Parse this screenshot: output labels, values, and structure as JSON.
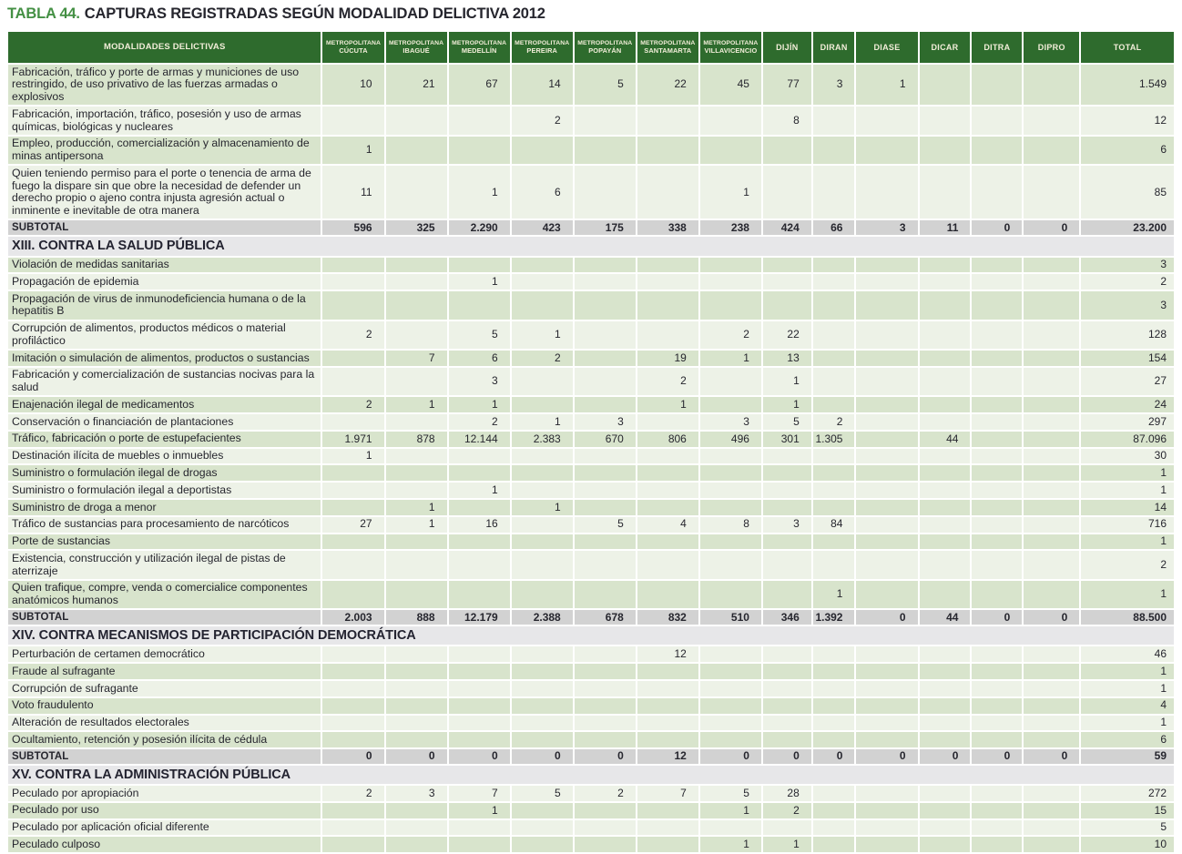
{
  "title": {
    "tag": "TABLA 44.",
    "text": "CAPTURAS REGISTRADAS SEGÚN MODALIDAD DELICTIVA 2012"
  },
  "colors": {
    "header_bg": "#2e6b2d",
    "header_text": "#f2eed9",
    "stripe_green": "#d8e4cc",
    "stripe_light": "#edf2e7",
    "subtotal_bg": "#d2d2d2",
    "section_bg": "#e7e7e9",
    "title_accent": "#449044",
    "text": "#26262e"
  },
  "chart_data": {
    "type": "table",
    "title": "TABLA 44. CAPTURAS REGISTRADAS SEGÚN MODALIDAD DELICTIVA 2012"
  },
  "table": {
    "label_header": "MODALIDADES DELICTIVAS",
    "columns": [
      {
        "lines": [
          "METROPOLITANA",
          "CÚCUTA"
        ]
      },
      {
        "lines": [
          "METROPOLITANA",
          "IBAGUÉ"
        ]
      },
      {
        "lines": [
          "METROPOLITANA",
          "MEDELLÍN"
        ]
      },
      {
        "lines": [
          "METROPOLITANA",
          "PEREIRA"
        ]
      },
      {
        "lines": [
          "METROPOLITANA",
          "POPAYÁN"
        ]
      },
      {
        "lines": [
          "METROPOLITANA",
          "SANTAMARTA"
        ]
      },
      {
        "lines": [
          "METROPOLITANA",
          "VILLAVICENCIO"
        ]
      },
      {
        "lines": [
          "DIJÍN"
        ]
      },
      {
        "lines": [
          "DIRAN"
        ]
      },
      {
        "lines": [
          "DIASE"
        ]
      },
      {
        "lines": [
          "DICAR"
        ]
      },
      {
        "lines": [
          "DITRA"
        ]
      },
      {
        "lines": [
          "DIPRO"
        ]
      },
      {
        "lines": [
          "TOTAL"
        ]
      }
    ],
    "rows": [
      {
        "type": "data",
        "shade": "a",
        "label": "Fabricación, tráfico y porte de armas y municiones de uso restringido, de uso privativo de las fuerzas armadas o explosivos",
        "values": [
          "10",
          "21",
          "67",
          "14",
          "5",
          "22",
          "45",
          "77",
          "3",
          "1",
          "",
          "",
          "",
          "1.549"
        ]
      },
      {
        "type": "data",
        "shade": "b",
        "label": "Fabricación, importación, tráfico, posesión y uso de armas químicas, biológicas y nucleares",
        "values": [
          "",
          "",
          "",
          "2",
          "",
          "",
          "",
          "8",
          "",
          "",
          "",
          "",
          "",
          "12"
        ]
      },
      {
        "type": "data",
        "shade": "a",
        "label": "Empleo, producción, comercialización y almacenamiento de minas antipersona",
        "values": [
          "1",
          "",
          "",
          "",
          "",
          "",
          "",
          "",
          "",
          "",
          "",
          "",
          "",
          "6"
        ]
      },
      {
        "type": "data",
        "shade": "b",
        "label": "Quien teniendo permiso para el porte o tenencia de arma de fuego la dispare sin que obre la necesidad de defender un derecho propio o ajeno contra injusta agresión actual o inminente e inevitable de otra manera",
        "values": [
          "11",
          "",
          "1",
          "6",
          "",
          "",
          "1",
          "",
          "",
          "",
          "",
          "",
          "",
          "85"
        ]
      },
      {
        "type": "subtotal",
        "label": "SUBTOTAL",
        "values": [
          "596",
          "325",
          "2.290",
          "423",
          "175",
          "338",
          "238",
          "424",
          "66",
          "3",
          "11",
          "0",
          "0",
          "23.200"
        ]
      },
      {
        "type": "section",
        "label": "XIII. CONTRA LA SALUD PÚBLICA"
      },
      {
        "type": "data",
        "shade": "a",
        "label": "Violación de medidas sanitarias",
        "values": [
          "",
          "",
          "",
          "",
          "",
          "",
          "",
          "",
          "",
          "",
          "",
          "",
          "",
          "3"
        ]
      },
      {
        "type": "data",
        "shade": "b",
        "label": "Propagación de epidemia",
        "values": [
          "",
          "",
          "1",
          "",
          "",
          "",
          "",
          "",
          "",
          "",
          "",
          "",
          "",
          "2"
        ]
      },
      {
        "type": "data",
        "shade": "a",
        "label": "Propagación de virus de inmunodeficiencia humana o de la hepatitis B",
        "values": [
          "",
          "",
          "",
          "",
          "",
          "",
          "",
          "",
          "",
          "",
          "",
          "",
          "",
          "3"
        ]
      },
      {
        "type": "data",
        "shade": "b",
        "label": "Corrupción de alimentos, productos médicos o material profiláctico",
        "values": [
          "2",
          "",
          "5",
          "1",
          "",
          "",
          "2",
          "22",
          "",
          "",
          "",
          "",
          "",
          "128"
        ]
      },
      {
        "type": "data",
        "shade": "a",
        "label": "Imitación o simulación de alimentos, productos o sustancias",
        "values": [
          "",
          "7",
          "6",
          "2",
          "",
          "19",
          "1",
          "13",
          "",
          "",
          "",
          "",
          "",
          "154"
        ]
      },
      {
        "type": "data",
        "shade": "b",
        "label": "Fabricación y comercialización de sustancias nocivas para la salud",
        "values": [
          "",
          "",
          "3",
          "",
          "",
          "2",
          "",
          "1",
          "",
          "",
          "",
          "",
          "",
          "27"
        ]
      },
      {
        "type": "data",
        "shade": "a",
        "label": "Enajenación ilegal de medicamentos",
        "values": [
          "2",
          "1",
          "1",
          "",
          "",
          "1",
          "",
          "1",
          "",
          "",
          "",
          "",
          "",
          "24"
        ]
      },
      {
        "type": "data",
        "shade": "b",
        "label": "Conservación o financiación de plantaciones",
        "values": [
          "",
          "",
          "2",
          "1",
          "3",
          "",
          "3",
          "5",
          "2",
          "",
          "",
          "",
          "",
          "297"
        ]
      },
      {
        "type": "data",
        "shade": "a",
        "label": "Tráfico, fabricación o porte de estupefacientes",
        "values": [
          "1.971",
          "878",
          "12.144",
          "2.383",
          "670",
          "806",
          "496",
          "301",
          "1.305",
          "",
          "44",
          "",
          "",
          "87.096"
        ]
      },
      {
        "type": "data",
        "shade": "b",
        "label": "Destinación ilícita de muebles o inmuebles",
        "values": [
          "1",
          "",
          "",
          "",
          "",
          "",
          "",
          "",
          "",
          "",
          "",
          "",
          "",
          "30"
        ]
      },
      {
        "type": "data",
        "shade": "a",
        "label": "Suministro o formulación ilegal de drogas",
        "values": [
          "",
          "",
          "",
          "",
          "",
          "",
          "",
          "",
          "",
          "",
          "",
          "",
          "",
          "1"
        ]
      },
      {
        "type": "data",
        "shade": "b",
        "label": "Suministro o formulación ilegal a deportistas",
        "values": [
          "",
          "",
          "1",
          "",
          "",
          "",
          "",
          "",
          "",
          "",
          "",
          "",
          "",
          "1"
        ]
      },
      {
        "type": "data",
        "shade": "a",
        "label": "Suministro de droga a menor",
        "values": [
          "",
          "1",
          "",
          "1",
          "",
          "",
          "",
          "",
          "",
          "",
          "",
          "",
          "",
          "14"
        ]
      },
      {
        "type": "data",
        "shade": "b",
        "label": "Tráfico de sustancias para procesamiento de narcóticos",
        "values": [
          "27",
          "1",
          "16",
          "",
          "5",
          "4",
          "8",
          "3",
          "84",
          "",
          "",
          "",
          "",
          "716"
        ]
      },
      {
        "type": "data",
        "shade": "a",
        "label": "Porte de sustancias",
        "values": [
          "",
          "",
          "",
          "",
          "",
          "",
          "",
          "",
          "",
          "",
          "",
          "",
          "",
          "1"
        ]
      },
      {
        "type": "data",
        "shade": "b",
        "label": "Existencia, construcción y utilización ilegal de pistas de aterrizaje",
        "values": [
          "",
          "",
          "",
          "",
          "",
          "",
          "",
          "",
          "",
          "",
          "",
          "",
          "",
          "2"
        ]
      },
      {
        "type": "data",
        "shade": "a",
        "label": "Quien trafique, compre, venda o comercialice componentes anatómicos humanos",
        "values": [
          "",
          "",
          "",
          "",
          "",
          "",
          "",
          "",
          "1",
          "",
          "",
          "",
          "",
          "1"
        ]
      },
      {
        "type": "subtotal",
        "label": "SUBTOTAL",
        "values": [
          "2.003",
          "888",
          "12.179",
          "2.388",
          "678",
          "832",
          "510",
          "346",
          "1.392",
          "0",
          "44",
          "0",
          "0",
          "88.500"
        ]
      },
      {
        "type": "section",
        "label": "XIV. CONTRA MECANISMOS DE PARTICIPACIÓN DEMOCRÁTICA"
      },
      {
        "type": "data",
        "shade": "b",
        "label": "Perturbación de certamen democrático",
        "values": [
          "",
          "",
          "",
          "",
          "",
          "12",
          "",
          "",
          "",
          "",
          "",
          "",
          "",
          "46"
        ]
      },
      {
        "type": "data",
        "shade": "a",
        "label": "Fraude al sufragante",
        "values": [
          "",
          "",
          "",
          "",
          "",
          "",
          "",
          "",
          "",
          "",
          "",
          "",
          "",
          "1"
        ]
      },
      {
        "type": "data",
        "shade": "b",
        "label": "Corrupción de sufragante",
        "values": [
          "",
          "",
          "",
          "",
          "",
          "",
          "",
          "",
          "",
          "",
          "",
          "",
          "",
          "1"
        ]
      },
      {
        "type": "data",
        "shade": "a",
        "label": "Voto fraudulento",
        "values": [
          "",
          "",
          "",
          "",
          "",
          "",
          "",
          "",
          "",
          "",
          "",
          "",
          "",
          "4"
        ]
      },
      {
        "type": "data",
        "shade": "b",
        "label": "Alteración de resultados electorales",
        "values": [
          "",
          "",
          "",
          "",
          "",
          "",
          "",
          "",
          "",
          "",
          "",
          "",
          "",
          "1"
        ]
      },
      {
        "type": "data",
        "shade": "a",
        "label": "Ocultamiento, retención y posesión ilícita  de cédula",
        "values": [
          "",
          "",
          "",
          "",
          "",
          "",
          "",
          "",
          "",
          "",
          "",
          "",
          "",
          "6"
        ]
      },
      {
        "type": "subtotal",
        "label": "SUBTOTAL",
        "values": [
          "0",
          "0",
          "0",
          "0",
          "0",
          "12",
          "0",
          "0",
          "0",
          "0",
          "0",
          "0",
          "0",
          "59"
        ]
      },
      {
        "type": "section",
        "label": "XV. CONTRA LA ADMINISTRACIÓN PÚBLICA"
      },
      {
        "type": "data",
        "shade": "b",
        "label": "Peculado por apropiación",
        "values": [
          "2",
          "3",
          "7",
          "5",
          "2",
          "7",
          "5",
          "28",
          "",
          "",
          "",
          "",
          "",
          "272"
        ]
      },
      {
        "type": "data",
        "shade": "a",
        "label": "Peculado por uso",
        "values": [
          "",
          "",
          "1",
          "",
          "",
          "",
          "1",
          "2",
          "",
          "",
          "",
          "",
          "",
          "15"
        ]
      },
      {
        "type": "data",
        "shade": "b",
        "label": "Peculado por aplicación oficial diferente",
        "values": [
          "",
          "",
          "",
          "",
          "",
          "",
          "",
          "",
          "",
          "",
          "",
          "",
          "",
          "5"
        ]
      },
      {
        "type": "data",
        "shade": "a",
        "label": "Peculado culposo",
        "values": [
          "",
          "",
          "",
          "",
          "",
          "",
          "1",
          "1",
          "",
          "",
          "",
          "",
          "",
          "10"
        ]
      }
    ]
  }
}
